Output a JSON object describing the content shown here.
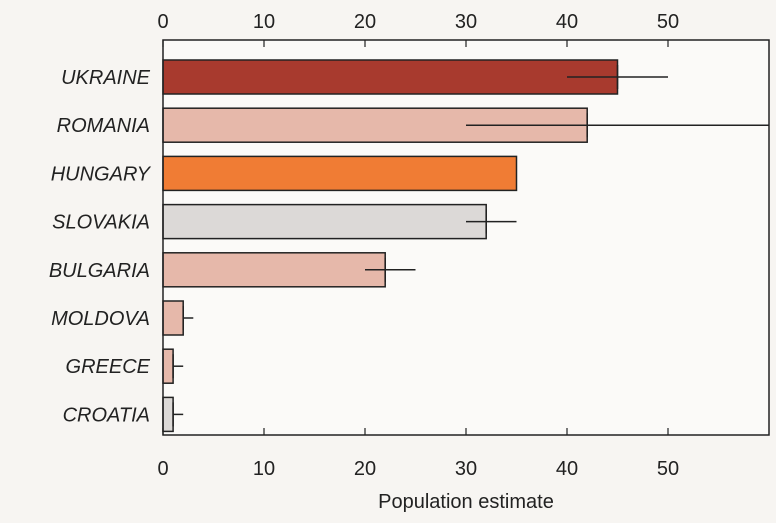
{
  "chart_data": {
    "type": "bar",
    "orientation": "horizontal",
    "categories": [
      "UKRAINE",
      "ROMANIA",
      "HUNGARY",
      "SLOVAKIA",
      "BULGARIA",
      "MOLDOVA",
      "GREECE",
      "CROATIA"
    ],
    "values": [
      45,
      42,
      35,
      32,
      22,
      2,
      1,
      1
    ],
    "error_low": [
      40,
      30,
      35,
      30,
      20,
      2,
      1,
      1
    ],
    "error_high": [
      50,
      60,
      35,
      35,
      25,
      3,
      2,
      2
    ],
    "colors": [
      "#a83a2e",
      "#e6b8aa",
      "#f07c34",
      "#dcd9d7",
      "#e6b8aa",
      "#e6b8aa",
      "#e6b8aa",
      "#dcd9d7"
    ],
    "xlabel": "Population estimate",
    "xlim": [
      0,
      60
    ],
    "xticks": [
      0,
      10,
      20,
      30,
      40,
      50
    ],
    "tick_labels_top": true,
    "tick_labels_bottom": true,
    "grid": false
  }
}
